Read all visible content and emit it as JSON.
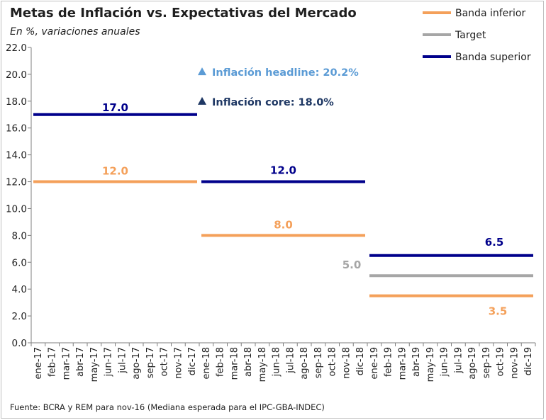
{
  "chart_data": {
    "type": "line",
    "title": "Metas de Inflación vs. Expectativas del Mercado",
    "subtitle": "En %, variaciones anuales",
    "source": "Fuente: BCRA  y REM  para nov-16 (Mediana esperada para el IPC-GBA-INDEC)",
    "ylim": [
      0,
      22
    ],
    "yticks": [
      "0.0",
      "2.0",
      "4.0",
      "6.0",
      "8.0",
      "10.0",
      "12.0",
      "14.0",
      "16.0",
      "18.0",
      "20.0",
      "22.0"
    ],
    "categories": [
      "ene-17",
      "feb-17",
      "mar-17",
      "abr-17",
      "may-17",
      "jun-17",
      "jul-17",
      "ago-17",
      "sep-17",
      "oct-17",
      "nov-17",
      "dic-17",
      "ene-18",
      "feb-18",
      "mar-18",
      "abr-18",
      "may-18",
      "jun-18",
      "jul-18",
      "ago-18",
      "sep-18",
      "oct-18",
      "nov-18",
      "dic-18",
      "ene-19",
      "feb-19",
      "mar-19",
      "abr-19",
      "may-19",
      "jun-19",
      "jul-19",
      "ago-19",
      "sep-19",
      "oct-19",
      "nov-19",
      "dic-19"
    ],
    "grid": false,
    "legend_position": "top-right",
    "series": [
      {
        "name": "Banda inferior",
        "color": "#f4a05a",
        "segments": [
          {
            "from": "ene-17",
            "to": "dic-17",
            "value": 12.0,
            "label": "12.0"
          },
          {
            "from": "ene-18",
            "to": "dic-18",
            "value": 8.0,
            "label": "8.0"
          },
          {
            "from": "ene-19",
            "to": "dic-19",
            "value": 3.5,
            "label": "3.5"
          }
        ]
      },
      {
        "name": "Target",
        "color": "#a6a6a6",
        "segments": [
          {
            "from": "ene-19",
            "to": "dic-19",
            "value": 5.0,
            "label": "5.0"
          }
        ]
      },
      {
        "name": "Banda superior",
        "color": "#00008b",
        "segments": [
          {
            "from": "ene-17",
            "to": "dic-17",
            "value": 17.0,
            "label": "17.0"
          },
          {
            "from": "ene-18",
            "to": "dic-18",
            "value": 12.0,
            "label": "12.0"
          },
          {
            "from": "ene-19",
            "to": "dic-19",
            "value": 6.5,
            "label": "6.5"
          }
        ]
      }
    ],
    "annotations": [
      {
        "text": "Inflación headline: 20.2%",
        "value": 20.2,
        "color": "#5b9bd5"
      },
      {
        "text": "Inflación core: 18.0%",
        "value": 18.0,
        "color": "#1f3864"
      }
    ]
  }
}
